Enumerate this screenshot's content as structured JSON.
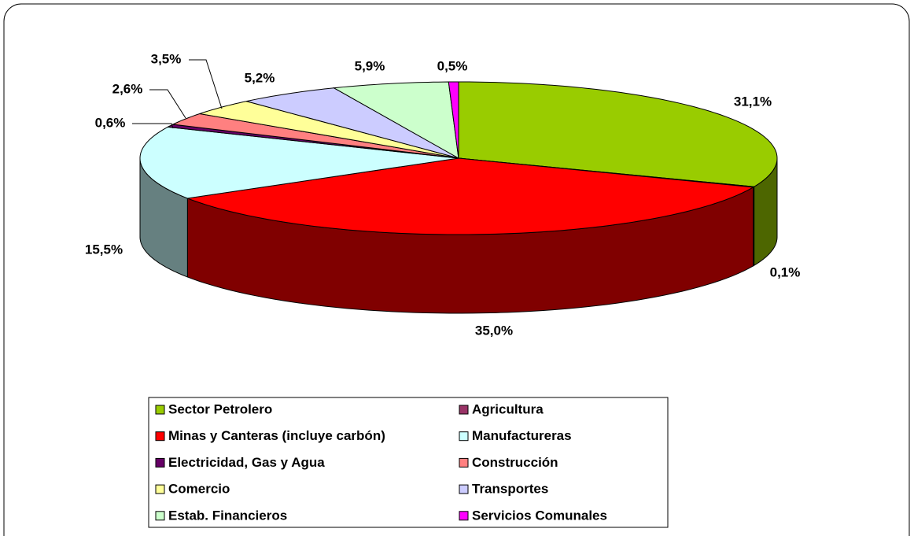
{
  "chart_data": {
    "type": "pie",
    "categories": [
      "Sector Petrolero",
      "Agricultura",
      "Minas y Canteras (incluye carbón)",
      "Manufactureras",
      "Electricidad, Gas y Agua",
      "Construcción",
      "Comercio",
      "Transportes",
      "Estab. Financieros",
      "Servicios Comunales"
    ],
    "values": [
      31.1,
      0.1,
      35.0,
      15.5,
      0.6,
      2.6,
      3.5,
      5.2,
      5.9,
      0.5
    ],
    "value_labels": [
      "31,1%",
      "0,1%",
      "35,0%",
      "15,5%",
      "0,6%",
      "2,6%",
      "3,5%",
      "5,2%",
      "5,9%",
      "0,5%"
    ],
    "colors": [
      "#99cc00",
      "#993366",
      "#ff0000",
      "#ccffff",
      "#660066",
      "#ff8080",
      "#ffff99",
      "#ccccff",
      "#ccffcc",
      "#ff00ff"
    ],
    "legend": "bottom"
  }
}
